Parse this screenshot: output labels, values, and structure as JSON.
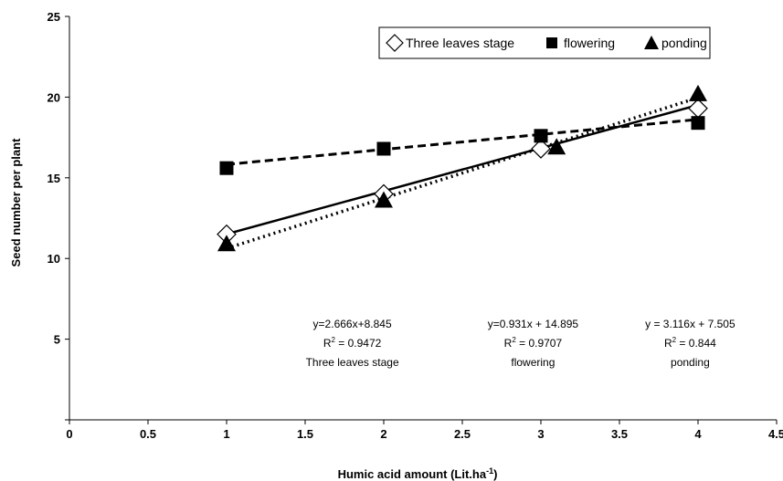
{
  "chart_data": {
    "type": "scatter",
    "xlabel": "Humic acid amount (Lit.ha",
    "xlabel_sup": "-1",
    "xlabel_end": ")",
    "ylabel": "Seed number per plant",
    "xlim": [
      0,
      4.5
    ],
    "ylim": [
      0,
      25
    ],
    "xticks": [
      "0",
      "0.5",
      "1",
      "1.5",
      "2",
      "2.5",
      "3",
      "3.5",
      "4",
      "4.5"
    ],
    "yticks": [
      "5",
      "10",
      "15",
      "20",
      "25"
    ],
    "grid": false,
    "legend_placement": "top-right",
    "series": [
      {
        "name": "Three leaves stage",
        "marker": "open-diamond",
        "line": "solid",
        "x": [
          1,
          2,
          3,
          4
        ],
        "y": [
          11.5,
          14.0,
          16.8,
          19.3
        ],
        "trend": {
          "slope": 2.666,
          "intercept": 8.845
        }
      },
      {
        "name": "flowering",
        "marker": "filled-square",
        "line": "dashed",
        "x": [
          1,
          2,
          3,
          4
        ],
        "y": [
          15.6,
          16.8,
          17.6,
          18.4
        ],
        "trend": {
          "slope": 0.931,
          "intercept": 14.895
        }
      },
      {
        "name": "ponding",
        "marker": "filled-triangle",
        "line": "dotted",
        "x": [
          1,
          2,
          3.1,
          4
        ],
        "y": [
          10.9,
          13.6,
          16.9,
          20.2
        ],
        "trend": {
          "slope": 3.116,
          "intercept": 7.505
        }
      }
    ],
    "annotations": [
      {
        "x": 1.8,
        "eq": "y=2.666x+8.845",
        "r2_prefix": "R",
        "r2_value": " = 0.9472",
        "label": "Three leaves stage"
      },
      {
        "x": 2.95,
        "eq": "y=0.931x + 14.895",
        "r2_prefix": "R",
        "r2_value": " = 0.9707",
        "label": "flowering"
      },
      {
        "x": 3.95,
        "eq": "y = 3.116x + 7.505",
        "r2_prefix": "R",
        "r2_value": " = 0.844",
        "label": "ponding"
      }
    ],
    "r2_sup": "2"
  }
}
